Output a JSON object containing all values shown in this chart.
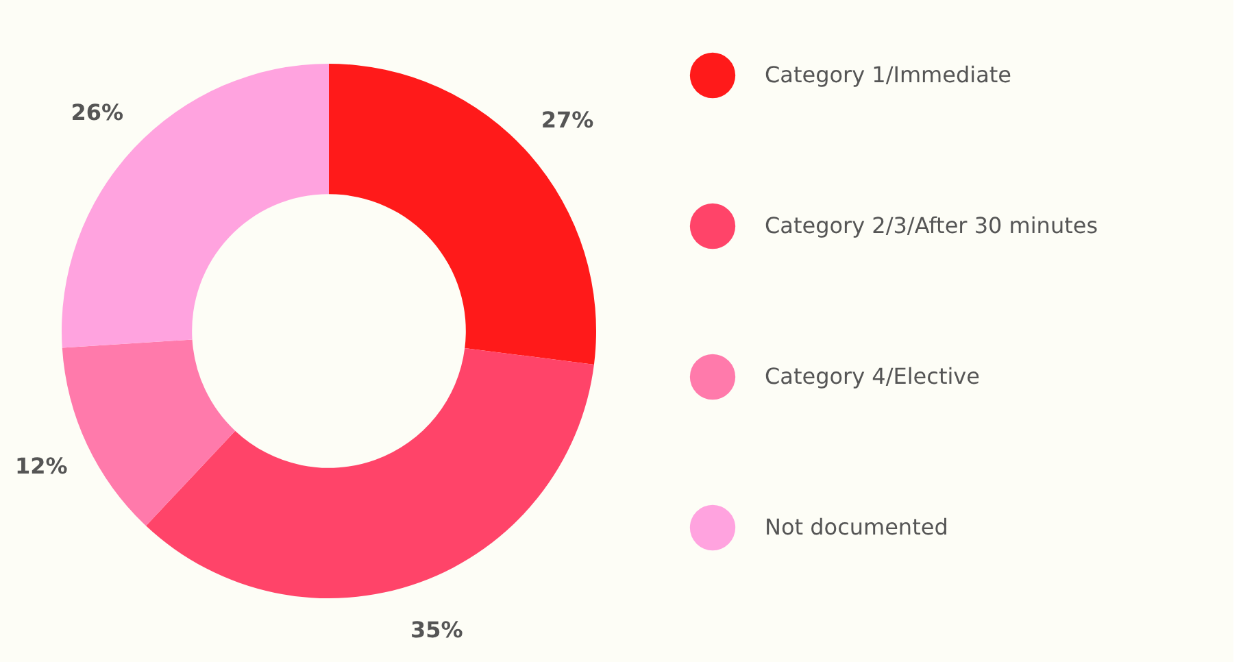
{
  "chart_data": {
    "type": "donut",
    "categories": [
      "Category 1/Immediate",
      "Category 2/3/After 30 minutes",
      "Category 4/Elective",
      "Not documented"
    ],
    "values": [
      27,
      35,
      12,
      26
    ],
    "colors": [
      "#ff1a1a",
      "#ff4469",
      "#ff7aab",
      "#ffa3df"
    ],
    "value_labels": [
      "27%",
      "35%",
      "12%",
      "26%"
    ],
    "legend": "right"
  }
}
